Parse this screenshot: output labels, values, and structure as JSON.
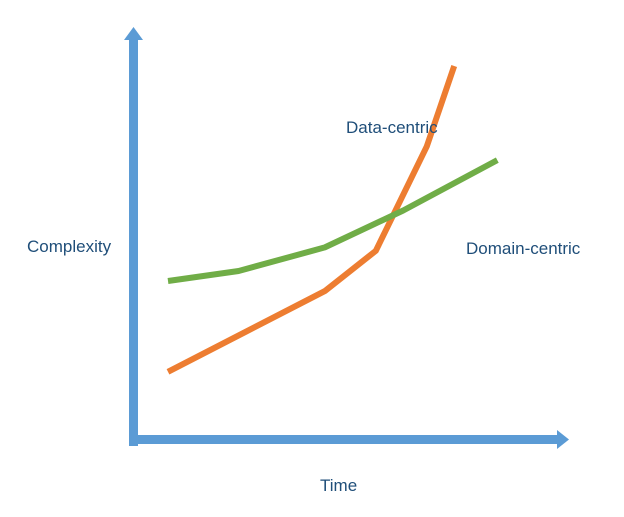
{
  "chart_data": {
    "type": "line",
    "title": "",
    "xlabel": "Time",
    "ylabel": "Complexity",
    "grid": false,
    "legend": "none (inline series labels)",
    "xlim": [
      0,
      10
    ],
    "ylim": [
      0,
      10
    ],
    "series": [
      {
        "name": "Data-centric",
        "color": "#ed7d31",
        "x": [
          0,
          2.0,
          4.0,
          5.3,
          6.6,
          7.3
        ],
        "y": [
          0.9,
          2.1,
          3.3,
          4.5,
          7.6,
          10.0
        ]
      },
      {
        "name": "Domain-centric",
        "color": "#70ad47",
        "x": [
          0,
          1.8,
          4.0,
          6.0,
          8.4
        ],
        "y": [
          3.6,
          3.9,
          4.6,
          5.7,
          7.2
        ]
      }
    ],
    "axis_color": "#5b9bd5"
  }
}
